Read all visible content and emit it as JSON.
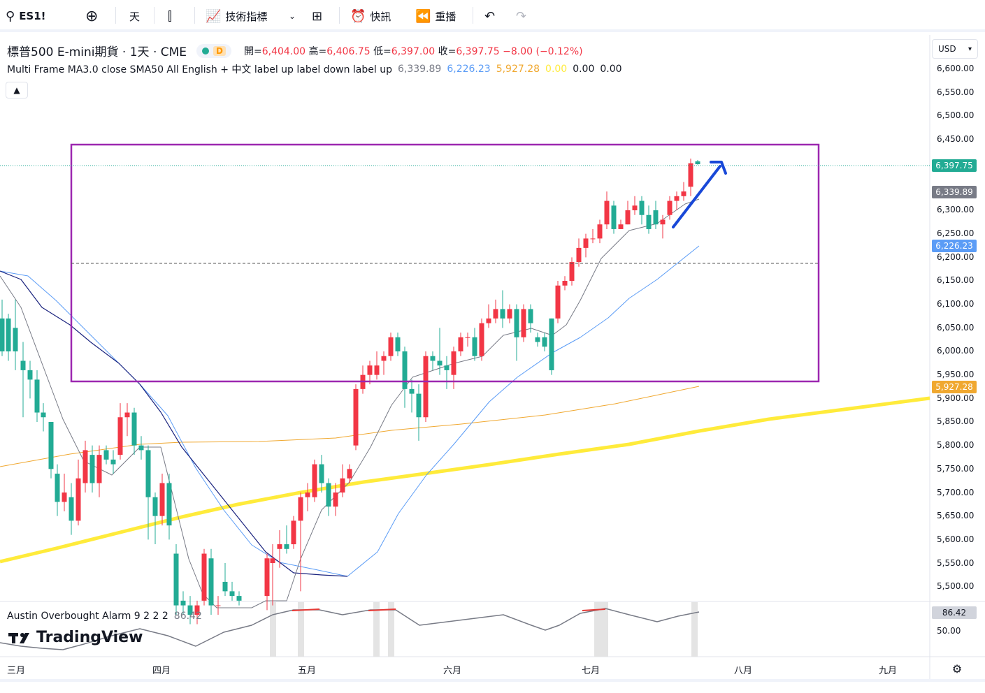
{
  "toolbar": {
    "symbol": "ES1!",
    "interval": "天",
    "indicators_label": "技術指標",
    "alerts_label": "快訊",
    "replay_label": "重播"
  },
  "legend": {
    "title": "標普500 E-mini期貨 · 1天 · CME",
    "badge_letter": "D",
    "open_key": "開=",
    "open": "6,404.00",
    "high_key": "高=",
    "high": "6,406.75",
    "low_key": "低=",
    "low": "6,397.00",
    "close_key": "收=",
    "close": "6,397.75",
    "change": "−8.00 (−0.12%)",
    "indicator_name": "Multi Frame MA3.0 close SMA50 All English + 中文 label up label down label up",
    "ind_v1": "6,339.89",
    "ind_v2": "6,226.23",
    "ind_v3": "5,927.28",
    "ind_v4": "0.00",
    "ind_v5": "0.00",
    "ind_v6": "0.00"
  },
  "currency": "USD",
  "price_axis": [
    "6,600.00",
    "6,550.00",
    "6,500.00",
    "6,450.00",
    "6,300.00",
    "6,250.00",
    "6,200.00",
    "6,150.00",
    "6,100.00",
    "6,050.00",
    "6,000.00",
    "5,950.00",
    "5,900.00",
    "5,850.00",
    "5,800.00",
    "5,750.00",
    "5,700.00",
    "5,650.00",
    "5,600.00",
    "5,550.00",
    "5,500.00"
  ],
  "price_tags": {
    "last": "6,397.75",
    "ma_fast": "6,339.89",
    "ma_mid": "6,226.23",
    "ma_slow": "5,927.28"
  },
  "oscillator": {
    "name": "Austin Overbought Alarm 9 2 2 2",
    "value": "86.42",
    "axis_label": "50.00"
  },
  "months": [
    "三月",
    "四月",
    "五月",
    "六月",
    "七月",
    "八月",
    "九月"
  ],
  "brand": "TradingView",
  "colors": {
    "up": "#22ab94",
    "down": "#f23645",
    "ma_fast": "#787b86",
    "ma_mid": "#5b9cf6",
    "ma_slow": "#f0a830",
    "ma_long": "#ffeb3b",
    "ma_navy": "#1a237e",
    "box": "#9c27b0",
    "arrow": "#1848d8"
  }
}
